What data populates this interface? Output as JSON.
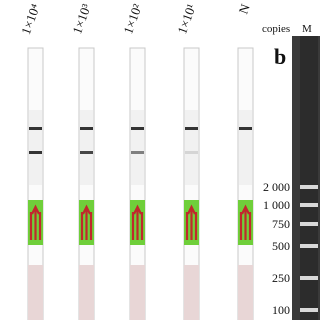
{
  "strips": {
    "labels": [
      "1×10⁴",
      "1×10³",
      "1×10²",
      "1×10¹",
      "N"
    ]
  },
  "gel": {
    "panel_label": "b",
    "unit_label": "copies",
    "lane_label": "M",
    "ladder": [
      "2 000",
      "1 000",
      "750",
      "500",
      "250",
      "100"
    ]
  }
}
